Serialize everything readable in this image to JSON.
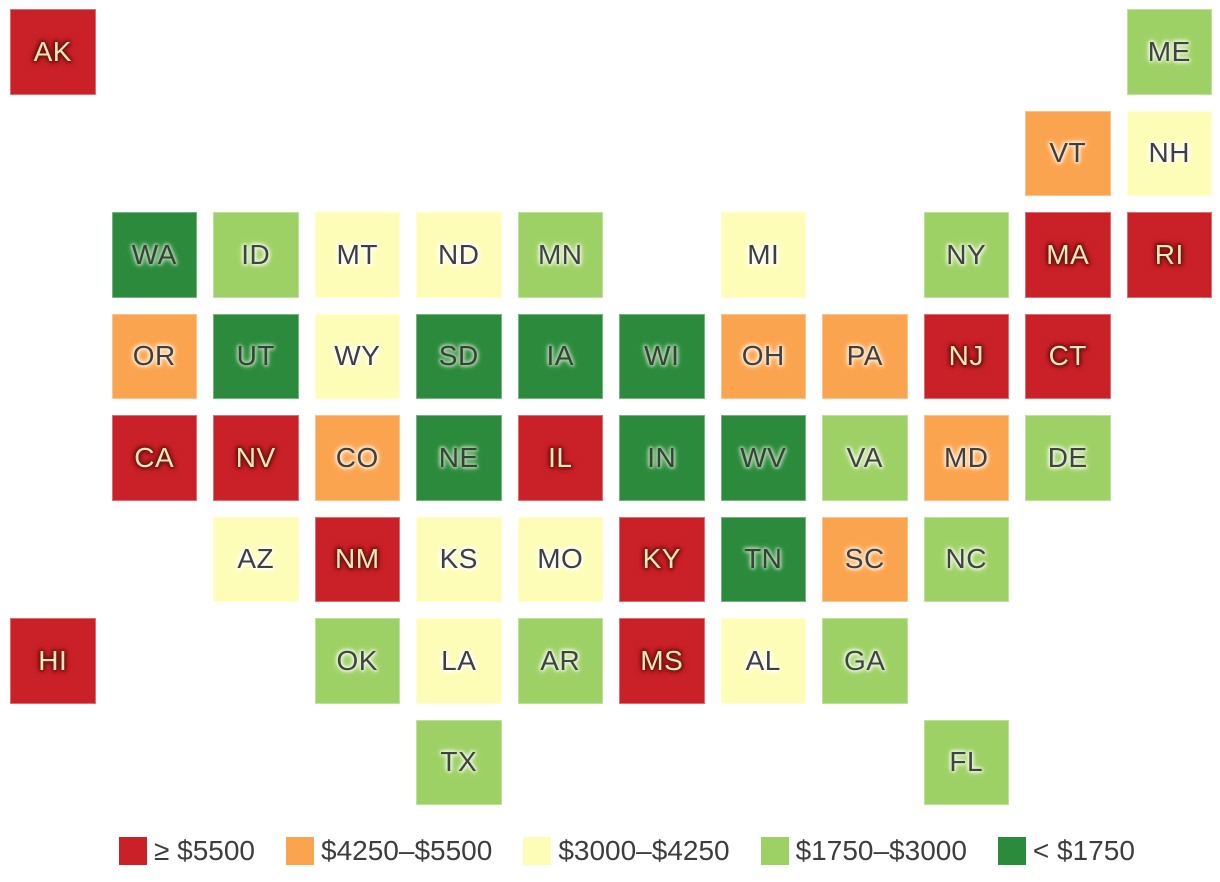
{
  "chart_data": {
    "type": "heatmap",
    "subtype": "us-state-tile-cartogram",
    "title": "",
    "grid": {
      "columns": 12,
      "rows": 8
    },
    "legend_position": "bottom",
    "legend": [
      {
        "key": "red",
        "label": "≥ $5500",
        "color": "#c92127"
      },
      {
        "key": "orange",
        "label": "$4250–$5500",
        "color": "#fba44f"
      },
      {
        "key": "yellow",
        "label": "$3000–$4250",
        "color": "#fdfdb8"
      },
      {
        "key": "lightgreen",
        "label": "$1750–$3000",
        "color": "#9ed165"
      },
      {
        "key": "darkgreen",
        "label": "< $1750",
        "color": "#2b8a3c"
      }
    ],
    "palette": {
      "red": {
        "bg": "#c92127",
        "label_color": "#f6e8bd",
        "halo": "#701511"
      },
      "orange": {
        "bg": "#fba44f",
        "label_color": "#3f3f3f",
        "halo": "#ffe8cd"
      },
      "yellow": {
        "bg": "#fdfdb8",
        "label_color": "#3f3f3f",
        "halo": "#ffffff"
      },
      "lightgreen": {
        "bg": "#9ed165",
        "label_color": "#3f4440",
        "halo": "#e7f4d6"
      },
      "darkgreen": {
        "bg": "#2b8a3c",
        "label_color": "#374237",
        "halo": "#a3cfa4"
      }
    },
    "states": [
      {
        "abbr": "AK",
        "row": 0,
        "col": 0,
        "key": "red",
        "bin": "≥ $5500"
      },
      {
        "abbr": "ME",
        "row": 0,
        "col": 11,
        "key": "lightgreen",
        "bin": "$1750–$3000"
      },
      {
        "abbr": "VT",
        "row": 1,
        "col": 10,
        "key": "orange",
        "bin": "$4250–$5500"
      },
      {
        "abbr": "NH",
        "row": 1,
        "col": 11,
        "key": "yellow",
        "bin": "$3000–$4250"
      },
      {
        "abbr": "WA",
        "row": 2,
        "col": 1,
        "key": "darkgreen",
        "bin": "< $1750"
      },
      {
        "abbr": "ID",
        "row": 2,
        "col": 2,
        "key": "lightgreen",
        "bin": "$1750–$3000"
      },
      {
        "abbr": "MT",
        "row": 2,
        "col": 3,
        "key": "yellow",
        "bin": "$3000–$4250"
      },
      {
        "abbr": "ND",
        "row": 2,
        "col": 4,
        "key": "yellow",
        "bin": "$3000–$4250"
      },
      {
        "abbr": "MN",
        "row": 2,
        "col": 5,
        "key": "lightgreen",
        "bin": "$1750–$3000"
      },
      {
        "abbr": "MI",
        "row": 2,
        "col": 7,
        "key": "yellow",
        "bin": "$3000–$4250"
      },
      {
        "abbr": "NY",
        "row": 2,
        "col": 9,
        "key": "lightgreen",
        "bin": "$1750–$3000"
      },
      {
        "abbr": "MA",
        "row": 2,
        "col": 10,
        "key": "red",
        "bin": "≥ $5500"
      },
      {
        "abbr": "RI",
        "row": 2,
        "col": 11,
        "key": "red",
        "bin": "≥ $5500"
      },
      {
        "abbr": "OR",
        "row": 3,
        "col": 1,
        "key": "orange",
        "bin": "$4250–$5500"
      },
      {
        "abbr": "UT",
        "row": 3,
        "col": 2,
        "key": "darkgreen",
        "bin": "< $1750"
      },
      {
        "abbr": "WY",
        "row": 3,
        "col": 3,
        "key": "yellow",
        "bin": "$3000–$4250"
      },
      {
        "abbr": "SD",
        "row": 3,
        "col": 4,
        "key": "darkgreen",
        "bin": "< $1750"
      },
      {
        "abbr": "IA",
        "row": 3,
        "col": 5,
        "key": "darkgreen",
        "bin": "< $1750"
      },
      {
        "abbr": "WI",
        "row": 3,
        "col": 6,
        "key": "darkgreen",
        "bin": "< $1750"
      },
      {
        "abbr": "OH",
        "row": 3,
        "col": 7,
        "key": "orange",
        "bin": "$4250–$5500"
      },
      {
        "abbr": "PA",
        "row": 3,
        "col": 8,
        "key": "orange",
        "bin": "$4250–$5500"
      },
      {
        "abbr": "NJ",
        "row": 3,
        "col": 9,
        "key": "red",
        "bin": "≥ $5500"
      },
      {
        "abbr": "CT",
        "row": 3,
        "col": 10,
        "key": "red",
        "bin": "≥ $5500"
      },
      {
        "abbr": "CA",
        "row": 4,
        "col": 1,
        "key": "red",
        "bin": "≥ $5500"
      },
      {
        "abbr": "NV",
        "row": 4,
        "col": 2,
        "key": "red",
        "bin": "≥ $5500"
      },
      {
        "abbr": "CO",
        "row": 4,
        "col": 3,
        "key": "orange",
        "bin": "$4250–$5500"
      },
      {
        "abbr": "NE",
        "row": 4,
        "col": 4,
        "key": "darkgreen",
        "bin": "< $1750"
      },
      {
        "abbr": "IL",
        "row": 4,
        "col": 5,
        "key": "red",
        "bin": "≥ $5500"
      },
      {
        "abbr": "IN",
        "row": 4,
        "col": 6,
        "key": "darkgreen",
        "bin": "< $1750"
      },
      {
        "abbr": "WV",
        "row": 4,
        "col": 7,
        "key": "darkgreen",
        "bin": "< $1750"
      },
      {
        "abbr": "VA",
        "row": 4,
        "col": 8,
        "key": "lightgreen",
        "bin": "$1750–$3000"
      },
      {
        "abbr": "MD",
        "row": 4,
        "col": 9,
        "key": "orange",
        "bin": "$4250–$5500"
      },
      {
        "abbr": "DE",
        "row": 4,
        "col": 10,
        "key": "lightgreen",
        "bin": "$1750–$3000"
      },
      {
        "abbr": "AZ",
        "row": 5,
        "col": 2,
        "key": "yellow",
        "bin": "$3000–$4250"
      },
      {
        "abbr": "NM",
        "row": 5,
        "col": 3,
        "key": "red",
        "bin": "≥ $5500"
      },
      {
        "abbr": "KS",
        "row": 5,
        "col": 4,
        "key": "yellow",
        "bin": "$3000–$4250"
      },
      {
        "abbr": "MO",
        "row": 5,
        "col": 5,
        "key": "yellow",
        "bin": "$3000–$4250"
      },
      {
        "abbr": "KY",
        "row": 5,
        "col": 6,
        "key": "red",
        "bin": "≥ $5500"
      },
      {
        "abbr": "TN",
        "row": 5,
        "col": 7,
        "key": "darkgreen",
        "bin": "< $1750"
      },
      {
        "abbr": "SC",
        "row": 5,
        "col": 8,
        "key": "orange",
        "bin": "$4250–$5500"
      },
      {
        "abbr": "NC",
        "row": 5,
        "col": 9,
        "key": "lightgreen",
        "bin": "$1750–$3000"
      },
      {
        "abbr": "HI",
        "row": 6,
        "col": 0,
        "key": "red",
        "bin": "≥ $5500"
      },
      {
        "abbr": "OK",
        "row": 6,
        "col": 3,
        "key": "lightgreen",
        "bin": "$1750–$3000"
      },
      {
        "abbr": "LA",
        "row": 6,
        "col": 4,
        "key": "yellow",
        "bin": "$3000–$4250"
      },
      {
        "abbr": "AR",
        "row": 6,
        "col": 5,
        "key": "lightgreen",
        "bin": "$1750–$3000"
      },
      {
        "abbr": "MS",
        "row": 6,
        "col": 6,
        "key": "red",
        "bin": "≥ $5500"
      },
      {
        "abbr": "AL",
        "row": 6,
        "col": 7,
        "key": "yellow",
        "bin": "$3000–$4250"
      },
      {
        "abbr": "GA",
        "row": 6,
        "col": 8,
        "key": "lightgreen",
        "bin": "$1750–$3000"
      },
      {
        "abbr": "TX",
        "row": 7,
        "col": 4,
        "key": "lightgreen",
        "bin": "$1750–$3000"
      },
      {
        "abbr": "FL",
        "row": 7,
        "col": 9,
        "key": "lightgreen",
        "bin": "$1750–$3000"
      }
    ]
  }
}
